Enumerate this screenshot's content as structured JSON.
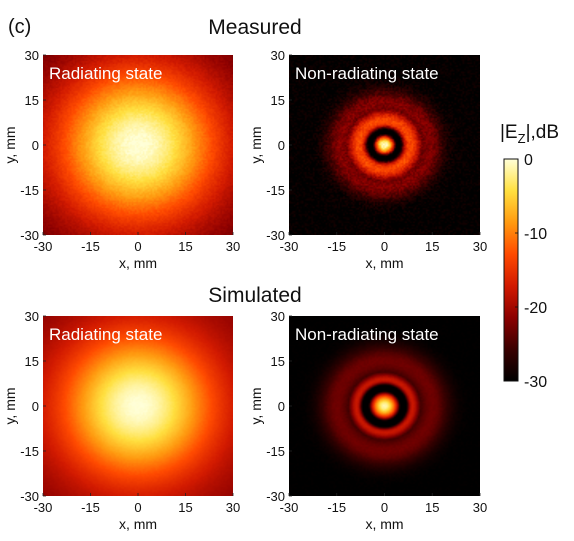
{
  "panel_label": "(c)",
  "row_titles": {
    "top": "Measured",
    "bottom": "Simulated"
  },
  "colors": {
    "colormap": [
      "#000000",
      "#3a0000",
      "#8c0000",
      "#d21a00",
      "#ff4a00",
      "#ff9a10",
      "#ffe040",
      "#ffffd8"
    ],
    "panel_text": "#ffffff",
    "axis": "#111111"
  },
  "colorbar": {
    "label_main": "|E",
    "label_sub": "Z",
    "label_suffix": "|,dB",
    "ticks": [
      "0",
      "-10",
      "-20",
      "-30"
    ],
    "range": [
      -30,
      0
    ]
  },
  "chart_data": [
    {
      "type": "heatmap",
      "id": "measured-radiating",
      "title": "Radiating state",
      "xlabel": "x, mm",
      "ylabel": "y, mm",
      "xlim": [
        -30,
        30
      ],
      "ylim": [
        -30,
        30
      ],
      "x_ticks": [
        "-30",
        "-15",
        "0",
        "15",
        "30"
      ],
      "y_ticks": [
        "30",
        "15",
        "0",
        "-15",
        "-30"
      ],
      "field": {
        "kind": "spot",
        "center": [
          0,
          0
        ],
        "floor_db": -24,
        "core_db": 0,
        "sigma_mm": 14,
        "noise": 0.6
      }
    },
    {
      "type": "heatmap",
      "id": "measured-nonradiating",
      "title": "Non-radiating state",
      "xlabel": "x, mm",
      "ylabel": "y, mm",
      "xlim": [
        -30,
        30
      ],
      "ylim": [
        -30,
        30
      ],
      "x_ticks": [
        "-30",
        "-15",
        "0",
        "15",
        "30"
      ],
      "y_ticks": [
        "30",
        "15",
        "0",
        "-15",
        "-30"
      ],
      "field": {
        "kind": "ring",
        "center": [
          0,
          0
        ],
        "floor_db": -30,
        "core_db": 0,
        "core_sigma_mm": 2.6,
        "null_radius_mm": 4.5,
        "ring_radius_mm": 8,
        "ring_db": -13,
        "ring_width_mm": 6,
        "halo_db": -22,
        "halo_radius_mm": 14,
        "halo_width_mm": 7,
        "noise": 1.6
      }
    },
    {
      "type": "heatmap",
      "id": "simulated-radiating",
      "title": "Radiating state",
      "xlabel": "x, mm",
      "ylabel": "y, mm",
      "xlim": [
        -30,
        30
      ],
      "ylim": [
        -30,
        30
      ],
      "x_ticks": [
        "-30",
        "-15",
        "0",
        "15",
        "30"
      ],
      "y_ticks": [
        "30",
        "15",
        "0",
        "-15",
        "-30"
      ],
      "field": {
        "kind": "spot",
        "center": [
          0,
          0
        ],
        "floor_db": -22,
        "core_db": 0,
        "sigma_mm": 13,
        "noise": 0.2
      }
    },
    {
      "type": "heatmap",
      "id": "simulated-nonradiating",
      "title": "Non-radiating state",
      "xlabel": "x, mm",
      "ylabel": "y, mm",
      "xlim": [
        -30,
        30
      ],
      "ylim": [
        -30,
        30
      ],
      "x_ticks": [
        "-30",
        "-15",
        "0",
        "15",
        "30"
      ],
      "y_ticks": [
        "30",
        "15",
        "0",
        "-15",
        "-30"
      ],
      "field": {
        "kind": "ring",
        "center": [
          0,
          0
        ],
        "floor_db": -30,
        "core_db": -1,
        "core_sigma_mm": 3.2,
        "null_radius_mm": 6,
        "ring_radius_mm": 8.5,
        "ring_db": -17,
        "ring_width_mm": 4,
        "halo_db": -23,
        "halo_radius_mm": 15,
        "halo_width_mm": 8,
        "noise": 0.3
      }
    }
  ]
}
